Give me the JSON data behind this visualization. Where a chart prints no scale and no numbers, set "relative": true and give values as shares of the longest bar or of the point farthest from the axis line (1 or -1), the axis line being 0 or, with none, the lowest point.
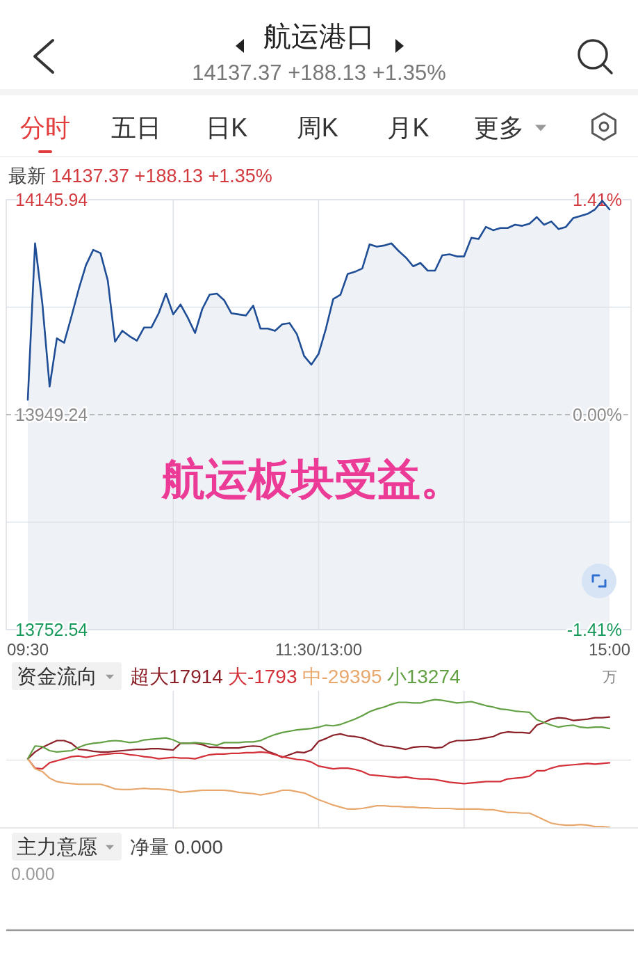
{
  "chart_data": [
    {
      "type": "other",
      "title": "航运港口",
      "subtitle": "14137.37 +188.13 +1.35%",
      "annotations": [
        "分时",
        "五日",
        "日K",
        "周K",
        "月K",
        "更多"
      ]
    },
    {
      "type": "area",
      "subtitle": "最新 14137.37 +188.13 +1.35%",
      "categories": [
        "09:30",
        null,
        null,
        null,
        null,
        null,
        null,
        null,
        null,
        null,
        null,
        null,
        null,
        null,
        null,
        null,
        null,
        null,
        null,
        null,
        null,
        null,
        null,
        null,
        null,
        null,
        null,
        null,
        null,
        null,
        null,
        null,
        null,
        null,
        null,
        null,
        null,
        null,
        null,
        null,
        "11:30/13:00",
        null,
        null,
        null,
        null,
        null,
        null,
        null,
        null,
        null,
        null,
        null,
        null,
        null,
        null,
        null,
        null,
        null,
        null,
        null,
        null,
        null,
        null,
        null,
        null,
        null,
        null,
        null,
        null,
        null,
        null,
        null,
        null,
        null,
        null,
        null,
        null,
        null,
        null,
        null,
        "15:00"
      ],
      "series": [
        {
          "color": "#1f4e96",
          "values": [
            13963,
            14106,
            14051,
            13975,
            14019,
            14015,
            14039,
            14064,
            14086,
            14100,
            14097,
            14072,
            14016,
            14026,
            14021,
            14017,
            14029,
            14029,
            14042,
            14060,
            14041,
            14050,
            14038,
            14024,
            14046,
            14059,
            14060,
            14054,
            14042,
            14041,
            14040,
            14049,
            14028,
            14028,
            14026,
            14032,
            14033,
            14023,
            14003,
            13995,
            14005,
            14028,
            14055,
            14059,
            14078,
            14080,
            14083,
            14105,
            14103,
            14104,
            14106,
            14099,
            14093,
            14085,
            14088,
            14081,
            14081,
            14095,
            14096,
            14094,
            14094,
            14111,
            14110,
            14121,
            14118,
            14120,
            14120,
            14123,
            14122,
            14124,
            14130,
            14123,
            14126,
            14119,
            14121,
            14129,
            14131,
            14133,
            14137,
            14145,
            14137
          ]
        }
      ],
      "ylim": [
        13752.54,
        14145.94
      ],
      "yticks": [
        14145.94,
        {
          "value": 14047.59,
          "label": null
        },
        13949.24,
        {
          "value": 13850.89,
          "label": null
        },
        13752.54
      ],
      "y2lim": [
        -1.41,
        1.41
      ],
      "y2ticks": [
        {
          "value": 1.41,
          "label": "1.41%"
        },
        {
          "value": 0,
          "label": "0.00%"
        },
        {
          "value": -1.41,
          "label": "-1.41%"
        }
      ],
      "ref_lines": [
        {
          "axis": "y",
          "value": 13949.24,
          "line_style": "dashed"
        }
      ],
      "grid": true,
      "annotations": [
        "航运板块受益。"
      ]
    },
    {
      "type": "line",
      "title": "资金流向",
      "relative": true,
      "legend": "top left",
      "grid": "x",
      "annotations": [
        "万"
      ],
      "categories": [
        null,
        null,
        null,
        null,
        null,
        null,
        null,
        null,
        null,
        null,
        null,
        null,
        null,
        null,
        null,
        null,
        null,
        null,
        null,
        null,
        null,
        null,
        null,
        null,
        null,
        null,
        null,
        null,
        null,
        null,
        null,
        null,
        null,
        null,
        null,
        null,
        null,
        null,
        null,
        null,
        null,
        null,
        null,
        null,
        null,
        null,
        null,
        null,
        null,
        null,
        null,
        null,
        null,
        null,
        null,
        null,
        null,
        null,
        null,
        null,
        null,
        null,
        null,
        null,
        null,
        null,
        null,
        null,
        null,
        null,
        null,
        null,
        null,
        null,
        null,
        null,
        null,
        null,
        null,
        null,
        null
      ],
      "series": [
        {
          "name": "超大17914",
          "color": "#8c2028",
          "values": [
            0.02,
            0.12,
            0.19,
            0.24,
            0.29,
            0.29,
            0.25,
            0.16,
            0.15,
            0.13,
            0.12,
            0.12,
            0.13,
            0.14,
            0.15,
            0.16,
            0.16,
            0.17,
            0.17,
            0.16,
            0.15,
            0.25,
            0.25,
            0.25,
            0.23,
            0.19,
            0.19,
            0.18,
            0.18,
            0.18,
            0.2,
            0.21,
            0.2,
            0.13,
            0.09,
            0.04,
            0.08,
            0.12,
            0.11,
            0.15,
            0.28,
            0.32,
            0.37,
            0.39,
            0.36,
            0.35,
            0.33,
            0.29,
            0.24,
            0.21,
            0.2,
            0.18,
            0.16,
            0.19,
            0.2,
            0.2,
            0.18,
            0.19,
            0.26,
            0.29,
            0.29,
            0.3,
            0.31,
            0.33,
            0.35,
            0.4,
            0.42,
            0.41,
            0.41,
            0.4,
            0.52,
            0.56,
            0.61,
            0.63,
            0.62,
            0.59,
            0.6,
            0.61,
            0.63,
            0.63,
            0.64
          ]
        },
        {
          "name": "大-1793",
          "color": "#d3303a",
          "values": [
            0.02,
            -0.12,
            -0.13,
            -0.04,
            -0.01,
            0.02,
            0.05,
            0.06,
            0.04,
            0.06,
            0.08,
            0.09,
            0.1,
            0.1,
            0.08,
            0.07,
            0.05,
            0.04,
            0.02,
            0.03,
            0.04,
            0.03,
            0.03,
            0.02,
            0.05,
            0.08,
            0.09,
            0.09,
            0.1,
            0.1,
            0.11,
            0.11,
            0.12,
            0.11,
            0.08,
            0.05,
            0.03,
            0.01,
            0.0,
            -0.03,
            -0.09,
            -0.11,
            -0.13,
            -0.12,
            -0.12,
            -0.14,
            -0.17,
            -0.22,
            -0.23,
            -0.24,
            -0.25,
            -0.26,
            -0.25,
            -0.27,
            -0.28,
            -0.28,
            -0.29,
            -0.31,
            -0.33,
            -0.34,
            -0.35,
            -0.34,
            -0.33,
            -0.32,
            -0.32,
            -0.32,
            -0.28,
            -0.27,
            -0.26,
            -0.24,
            -0.16,
            -0.16,
            -0.12,
            -0.09,
            -0.08,
            -0.07,
            -0.06,
            -0.05,
            -0.06,
            -0.05,
            -0.04
          ]
        },
        {
          "name": "中-29395",
          "color": "#e8a76c",
          "values": [
            0.02,
            -0.13,
            -0.17,
            -0.27,
            -0.32,
            -0.34,
            -0.35,
            -0.36,
            -0.36,
            -0.36,
            -0.36,
            -0.39,
            -0.43,
            -0.44,
            -0.44,
            -0.43,
            -0.42,
            -0.43,
            -0.43,
            -0.44,
            -0.45,
            -0.48,
            -0.47,
            -0.46,
            -0.45,
            -0.45,
            -0.45,
            -0.45,
            -0.46,
            -0.48,
            -0.49,
            -0.5,
            -0.52,
            -0.5,
            -0.48,
            -0.45,
            -0.45,
            -0.47,
            -0.49,
            -0.54,
            -0.59,
            -0.63,
            -0.67,
            -0.7,
            -0.73,
            -0.73,
            -0.72,
            -0.7,
            -0.68,
            -0.68,
            -0.69,
            -0.69,
            -0.7,
            -0.7,
            -0.71,
            -0.71,
            -0.72,
            -0.72,
            -0.72,
            -0.73,
            -0.73,
            -0.73,
            -0.73,
            -0.74,
            -0.74,
            -0.76,
            -0.78,
            -0.78,
            -0.79,
            -0.79,
            -0.84,
            -0.89,
            -0.94,
            -0.96,
            -0.97,
            -0.97,
            -0.96,
            -0.97,
            -0.99,
            -0.99,
            -1
          ]
        },
        {
          "name": "小13274",
          "color": "#62a043",
          "values": [
            0.02,
            0.21,
            0.2,
            0.14,
            0.12,
            0.13,
            0.14,
            0.19,
            0.23,
            0.25,
            0.26,
            0.28,
            0.29,
            0.28,
            0.26,
            0.27,
            0.3,
            0.31,
            0.32,
            0.33,
            0.3,
            0.25,
            0.25,
            0.26,
            0.25,
            0.24,
            0.22,
            0.26,
            0.26,
            0.26,
            0.27,
            0.27,
            0.29,
            0.34,
            0.38,
            0.41,
            0.43,
            0.45,
            0.46,
            0.47,
            0.49,
            0.52,
            0.51,
            0.53,
            0.57,
            0.61,
            0.66,
            0.72,
            0.76,
            0.79,
            0.83,
            0.86,
            0.86,
            0.85,
            0.85,
            0.88,
            0.9,
            0.89,
            0.87,
            0.85,
            0.86,
            0.87,
            0.84,
            0.81,
            0.79,
            0.76,
            0.75,
            0.73,
            0.72,
            0.71,
            0.6,
            0.56,
            0.52,
            0.49,
            0.51,
            0.52,
            0.49,
            0.48,
            0.49,
            0.49,
            0.47
          ]
        }
      ]
    },
    {
      "type": "other",
      "title": "主力意愿",
      "subtitle": "净量 0.000",
      "annotations": [
        "0.000"
      ]
    }
  ]
}
